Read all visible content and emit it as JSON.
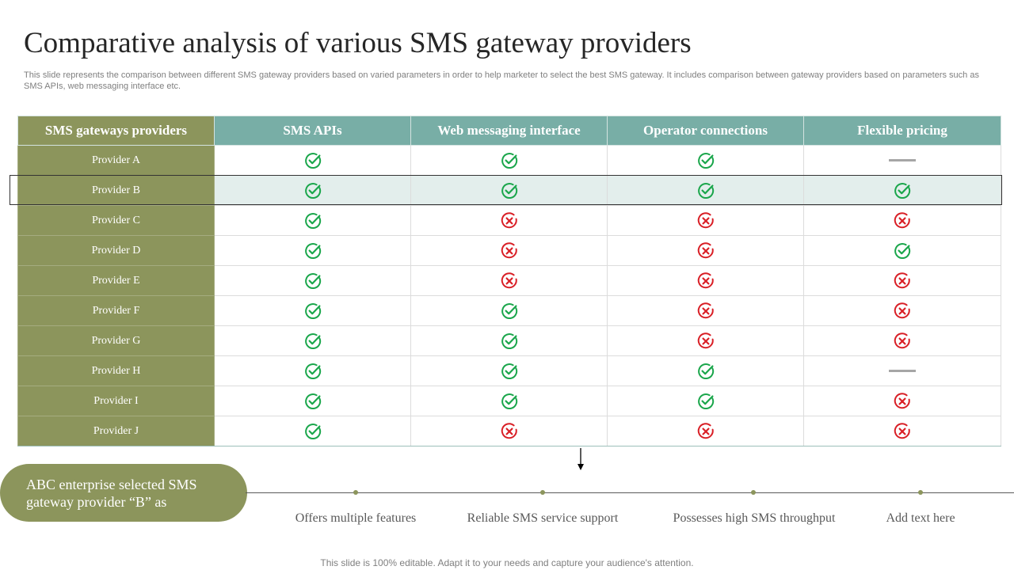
{
  "title": "Comparative analysis of various SMS gateway providers",
  "subtitle": "This slide represents the comparison between different SMS gateway providers based on varied parameters in order to help marketer to select the best SMS  gateway. It includes comparison between gateway providers based on parameters such as SMS APIs,  web messaging interface etc.",
  "colors": {
    "olive": "#8c955c",
    "teal_header": "#78aea6",
    "check_green": "#1aa64b",
    "cross_red": "#d91f26",
    "dash_gray": "#a6a6a6",
    "highlight_row": "#e3eeec"
  },
  "icons": {
    "check": "check-circle-icon",
    "cross": "cross-circle-icon",
    "dash": "dash-icon"
  },
  "table": {
    "headers": [
      "SMS gateways providers",
      "SMS APIs",
      "Web messaging interface",
      "Operator connections",
      "Flexible pricing"
    ],
    "highlighted_row": "Provider B",
    "rows": [
      {
        "provider": "Provider A",
        "values": [
          "check",
          "check",
          "check",
          "dash"
        ]
      },
      {
        "provider": "Provider B",
        "values": [
          "check",
          "check",
          "check",
          "check"
        ]
      },
      {
        "provider": "Provider C",
        "values": [
          "check",
          "cross",
          "cross",
          "cross"
        ]
      },
      {
        "provider": "Provider D",
        "values": [
          "check",
          "cross",
          "cross",
          "check"
        ]
      },
      {
        "provider": "Provider E",
        "values": [
          "check",
          "cross",
          "cross",
          "cross"
        ]
      },
      {
        "provider": "Provider F",
        "values": [
          "check",
          "check",
          "cross",
          "cross"
        ]
      },
      {
        "provider": "Provider G",
        "values": [
          "check",
          "check",
          "cross",
          "cross"
        ]
      },
      {
        "provider": "Provider H",
        "values": [
          "check",
          "check",
          "check",
          "dash"
        ]
      },
      {
        "provider": "Provider I",
        "values": [
          "check",
          "check",
          "check",
          "cross"
        ]
      },
      {
        "provider": "Provider J",
        "values": [
          "check",
          "cross",
          "cross",
          "cross"
        ]
      }
    ]
  },
  "summary": {
    "pill_text": "ABC enterprise selected SMS gateway provider “B” as",
    "reasons": [
      "Offers multiple features",
      "Reliable SMS service support",
      "Possesses high SMS throughput",
      "Add text here"
    ]
  },
  "footer": "This slide is 100% editable. Adapt it to your needs and capture your audience's attention."
}
